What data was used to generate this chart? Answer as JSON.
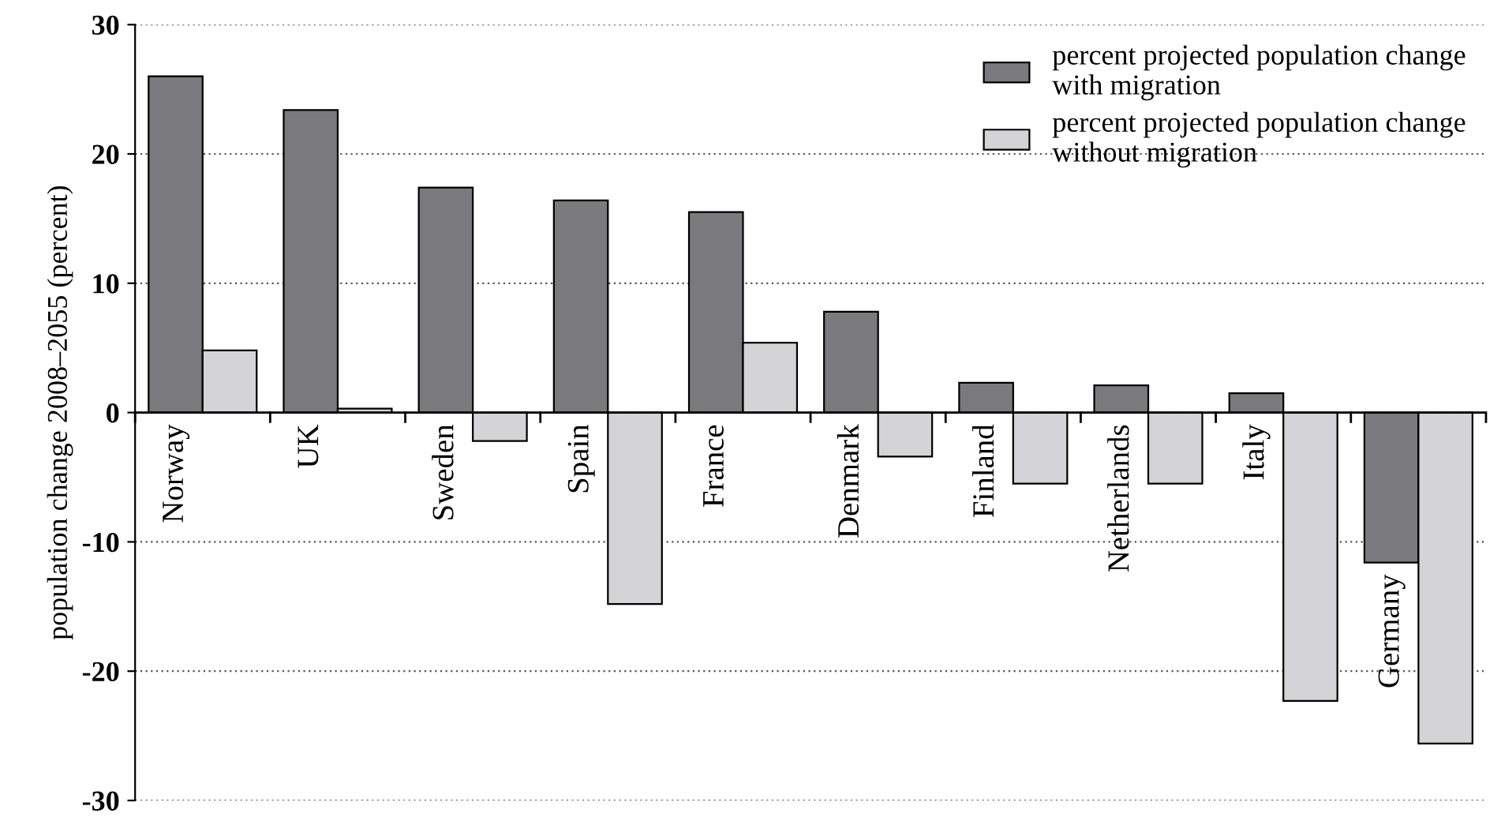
{
  "chart_data": {
    "type": "bar",
    "ylabel": "population change 2008–2055 (percent)",
    "categories": [
      "Norway",
      "UK",
      "Sweden",
      "Spain",
      "France",
      "Denmark",
      "Finland",
      "Netherlands",
      "Italy",
      "Germany"
    ],
    "series": [
      {
        "name": "percent projected population change\nwith migration",
        "color": "#7a7a7c",
        "values": [
          26,
          23.4,
          17.4,
          16.4,
          15.5,
          7.8,
          2.3,
          2.1,
          1.5,
          -11.6
        ]
      },
      {
        "name": "percent projected population change\nwithout migration",
        "color": "#d4d4d6",
        "values": [
          4.8,
          0.3,
          -2.2,
          -14.8,
          5.4,
          -3.4,
          -5.5,
          -5.5,
          -22.3,
          -25.6
        ]
      }
    ],
    "ylim": [
      -30,
      30
    ],
    "yticks": [
      -30,
      -20,
      -10,
      0,
      10,
      20,
      30
    ],
    "grid": "y",
    "legend": "top right"
  }
}
